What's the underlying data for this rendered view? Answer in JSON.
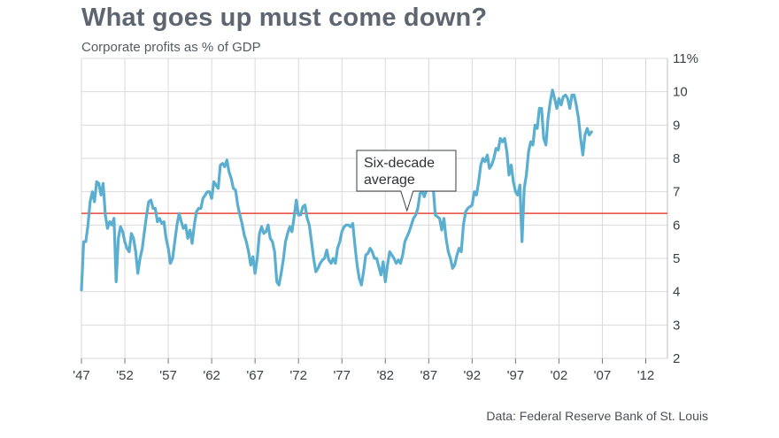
{
  "chart_data": {
    "type": "line",
    "title": "What goes up must come down?",
    "subtitle": "Corporate profits as % of GDP",
    "source": "Data: Federal Reserve Bank of St. Louis",
    "xlabel": "",
    "ylabel": "",
    "xlim": [
      1947,
      2014.5
    ],
    "ylim": [
      2,
      11
    ],
    "x_ticks": [
      {
        "value": 1947,
        "label": "'47"
      },
      {
        "value": 1952,
        "label": "'52"
      },
      {
        "value": 1957,
        "label": "'57"
      },
      {
        "value": 1962,
        "label": "'62"
      },
      {
        "value": 1967,
        "label": "'67"
      },
      {
        "value": 1972,
        "label": "'72"
      },
      {
        "value": 1977,
        "label": "'77"
      },
      {
        "value": 1982,
        "label": "'82"
      },
      {
        "value": 1987,
        "label": "'87"
      },
      {
        "value": 1992,
        "label": "'92"
      },
      {
        "value": 1997,
        "label": "'97"
      },
      {
        "value": 2002,
        "label": "'02"
      },
      {
        "value": 2007,
        "label": "'07"
      },
      {
        "value": 2012,
        "label": "'12"
      }
    ],
    "y_ticks": [
      {
        "value": 11,
        "label": "11%"
      },
      {
        "value": 10,
        "label": "10"
      },
      {
        "value": 9,
        "label": "9"
      },
      {
        "value": 8,
        "label": "8"
      },
      {
        "value": 7,
        "label": "7"
      },
      {
        "value": 6,
        "label": "6"
      },
      {
        "value": 5,
        "label": "5"
      },
      {
        "value": 4,
        "label": "4"
      },
      {
        "value": 3,
        "label": "3"
      },
      {
        "value": 2,
        "label": "2"
      }
    ],
    "grid": true,
    "reference_line": {
      "name": "Six-decade average",
      "value": 6.35
    },
    "annotation": {
      "line1": "Six-decade",
      "line2": "average",
      "x": 1984.5
    },
    "series": [
      {
        "name": "Corporate profits as % of GDP",
        "color": "#5aaed0",
        "points": [
          [
            1947.0,
            4.05
          ],
          [
            1947.25,
            5.5
          ],
          [
            1947.5,
            5.5
          ],
          [
            1947.75,
            6.0
          ],
          [
            1948.0,
            6.7
          ],
          [
            1948.25,
            7.0
          ],
          [
            1948.5,
            6.7
          ],
          [
            1948.75,
            7.3
          ],
          [
            1949.0,
            7.25
          ],
          [
            1949.25,
            6.9
          ],
          [
            1949.5,
            7.25
          ],
          [
            1949.75,
            6.3
          ],
          [
            1950.0,
            5.9
          ],
          [
            1950.25,
            6.1
          ],
          [
            1950.5,
            6.0
          ],
          [
            1950.75,
            6.2
          ],
          [
            1951.0,
            4.3
          ],
          [
            1951.25,
            5.6
          ],
          [
            1951.5,
            5.95
          ],
          [
            1951.75,
            5.8
          ],
          [
            1952.0,
            5.5
          ],
          [
            1952.25,
            5.3
          ],
          [
            1952.5,
            5.2
          ],
          [
            1952.75,
            5.75
          ],
          [
            1953.0,
            5.6
          ],
          [
            1953.25,
            5.2
          ],
          [
            1953.5,
            4.55
          ],
          [
            1953.75,
            5.0
          ],
          [
            1954.0,
            5.3
          ],
          [
            1954.25,
            5.8
          ],
          [
            1954.5,
            6.3
          ],
          [
            1954.75,
            6.7
          ],
          [
            1955.0,
            6.75
          ],
          [
            1955.25,
            6.5
          ],
          [
            1955.5,
            6.5
          ],
          [
            1955.75,
            6.1
          ],
          [
            1956.0,
            6.2
          ],
          [
            1956.25,
            6.05
          ],
          [
            1956.5,
            6.1
          ],
          [
            1956.75,
            5.6
          ],
          [
            1957.0,
            5.3
          ],
          [
            1957.25,
            4.85
          ],
          [
            1957.5,
            5.0
          ],
          [
            1957.75,
            5.5
          ],
          [
            1958.0,
            6.0
          ],
          [
            1958.25,
            6.35
          ],
          [
            1958.5,
            6.1
          ],
          [
            1958.75,
            5.9
          ],
          [
            1959.0,
            6.0
          ],
          [
            1959.25,
            5.6
          ],
          [
            1959.5,
            5.85
          ],
          [
            1959.75,
            5.45
          ],
          [
            1960.0,
            6.0
          ],
          [
            1960.25,
            6.4
          ],
          [
            1960.5,
            6.5
          ],
          [
            1960.75,
            6.5
          ],
          [
            1961.0,
            6.8
          ],
          [
            1961.25,
            6.9
          ],
          [
            1961.5,
            7.0
          ],
          [
            1961.75,
            7.0
          ],
          [
            1962.0,
            6.8
          ],
          [
            1962.25,
            7.3
          ],
          [
            1962.5,
            7.2
          ],
          [
            1962.75,
            7.1
          ],
          [
            1963.0,
            7.8
          ],
          [
            1963.25,
            7.85
          ],
          [
            1963.5,
            7.75
          ],
          [
            1963.75,
            7.95
          ],
          [
            1964.0,
            7.6
          ],
          [
            1964.25,
            7.4
          ],
          [
            1964.5,
            7.1
          ],
          [
            1964.75,
            7.05
          ],
          [
            1965.0,
            6.6
          ],
          [
            1965.25,
            6.3
          ],
          [
            1965.5,
            6.05
          ],
          [
            1965.75,
            5.7
          ],
          [
            1966.0,
            5.5
          ],
          [
            1966.25,
            5.2
          ],
          [
            1966.5,
            4.8
          ],
          [
            1966.75,
            5.05
          ],
          [
            1967.0,
            4.55
          ],
          [
            1967.25,
            5.0
          ],
          [
            1967.5,
            5.75
          ],
          [
            1967.75,
            5.95
          ],
          [
            1968.0,
            5.75
          ],
          [
            1968.25,
            5.8
          ],
          [
            1968.5,
            6.0
          ],
          [
            1968.75,
            5.6
          ],
          [
            1969.0,
            5.5
          ],
          [
            1969.25,
            5.2
          ],
          [
            1969.5,
            4.3
          ],
          [
            1969.75,
            4.2
          ],
          [
            1970.0,
            4.55
          ],
          [
            1970.25,
            4.95
          ],
          [
            1970.5,
            5.5
          ],
          [
            1970.75,
            5.75
          ],
          [
            1971.0,
            5.95
          ],
          [
            1971.25,
            5.8
          ],
          [
            1971.5,
            6.25
          ],
          [
            1971.75,
            6.75
          ],
          [
            1972.0,
            6.3
          ],
          [
            1972.25,
            6.3
          ],
          [
            1972.5,
            6.55
          ],
          [
            1972.75,
            6.6
          ],
          [
            1973.0,
            6.2
          ],
          [
            1973.25,
            6.0
          ],
          [
            1973.5,
            5.5
          ],
          [
            1973.75,
            5.0
          ],
          [
            1974.0,
            4.6
          ],
          [
            1974.25,
            4.7
          ],
          [
            1974.5,
            4.85
          ],
          [
            1974.75,
            4.95
          ],
          [
            1975.0,
            5.0
          ],
          [
            1975.25,
            5.25
          ],
          [
            1975.5,
            4.95
          ],
          [
            1975.75,
            4.85
          ],
          [
            1976.0,
            5.0
          ],
          [
            1976.25,
            4.85
          ],
          [
            1976.5,
            5.3
          ],
          [
            1976.75,
            5.5
          ],
          [
            1977.0,
            5.8
          ],
          [
            1977.25,
            5.95
          ],
          [
            1977.5,
            6.0
          ],
          [
            1977.75,
            6.0
          ],
          [
            1978.0,
            5.95
          ],
          [
            1978.25,
            6.05
          ],
          [
            1978.5,
            5.4
          ],
          [
            1978.75,
            4.8
          ],
          [
            1979.0,
            4.4
          ],
          [
            1979.25,
            4.2
          ],
          [
            1979.5,
            4.6
          ],
          [
            1979.75,
            5.1
          ],
          [
            1980.0,
            5.15
          ],
          [
            1980.25,
            5.3
          ],
          [
            1980.5,
            5.2
          ],
          [
            1980.75,
            5.0
          ],
          [
            1981.0,
            5.0
          ],
          [
            1981.25,
            4.75
          ],
          [
            1981.5,
            4.5
          ],
          [
            1981.75,
            4.9
          ],
          [
            1982.0,
            4.3
          ],
          [
            1982.25,
            4.8
          ],
          [
            1982.5,
            5.2
          ],
          [
            1982.75,
            5.1
          ],
          [
            1983.0,
            5.0
          ],
          [
            1983.25,
            4.85
          ],
          [
            1983.5,
            4.95
          ],
          [
            1983.75,
            4.85
          ],
          [
            1984.0,
            5.1
          ],
          [
            1984.25,
            5.5
          ],
          [
            1984.5,
            5.65
          ],
          [
            1984.75,
            5.8
          ],
          [
            1985.0,
            6.0
          ],
          [
            1985.25,
            6.2
          ],
          [
            1985.5,
            6.3
          ],
          [
            1985.75,
            6.5
          ],
          [
            1986.0,
            6.95
          ],
          [
            1986.25,
            7.0
          ],
          [
            1986.5,
            6.85
          ],
          [
            1986.75,
            7.05
          ],
          [
            1987.0,
            7.15
          ],
          [
            1987.25,
            7.3
          ],
          [
            1987.5,
            7.2
          ],
          [
            1987.75,
            6.3
          ],
          [
            1988.0,
            6.25
          ],
          [
            1988.25,
            6.2
          ],
          [
            1988.5,
            5.85
          ],
          [
            1988.75,
            6.2
          ],
          [
            1989.0,
            5.6
          ],
          [
            1989.25,
            5.2
          ],
          [
            1989.5,
            5.0
          ],
          [
            1989.75,
            4.7
          ],
          [
            1990.0,
            4.8
          ],
          [
            1990.25,
            5.1
          ],
          [
            1990.5,
            5.3
          ],
          [
            1990.75,
            5.2
          ],
          [
            1991.0,
            6.0
          ],
          [
            1991.25,
            6.4
          ],
          [
            1991.5,
            6.5
          ],
          [
            1991.75,
            6.55
          ],
          [
            1992.0,
            6.6
          ],
          [
            1992.25,
            7.0
          ],
          [
            1992.5,
            6.9
          ],
          [
            1992.75,
            7.3
          ],
          [
            1993.0,
            7.8
          ],
          [
            1993.25,
            8.0
          ],
          [
            1993.5,
            7.9
          ],
          [
            1993.75,
            8.1
          ],
          [
            1994.0,
            7.7
          ],
          [
            1994.25,
            7.8
          ],
          [
            1994.5,
            8.0
          ],
          [
            1994.75,
            8.3
          ],
          [
            1995.0,
            8.25
          ],
          [
            1995.25,
            8.6
          ],
          [
            1995.5,
            8.5
          ],
          [
            1995.75,
            8.6
          ],
          [
            1996.0,
            8.2
          ],
          [
            1996.25,
            7.5
          ],
          [
            1996.5,
            7.8
          ],
          [
            1996.75,
            7.3
          ],
          [
            1997.0,
            7.0
          ],
          [
            1997.25,
            6.9
          ],
          [
            1997.5,
            7.2
          ],
          [
            1997.75,
            5.5
          ],
          [
            1998.0,
            7.1
          ],
          [
            1998.25,
            7.5
          ],
          [
            1998.5,
            8.2
          ],
          [
            1998.75,
            8.5
          ],
          [
            1999.0,
            8.4
          ],
          [
            1999.25,
            9.0
          ],
          [
            1999.5,
            8.9
          ],
          [
            1999.75,
            9.5
          ],
          [
            2000.0,
            9.5
          ],
          [
            2000.25,
            8.6
          ],
          [
            2000.5,
            8.4
          ],
          [
            2000.75,
            9.2
          ],
          [
            2001.0,
            9.7
          ],
          [
            2001.25,
            10.05
          ],
          [
            2001.5,
            9.8
          ],
          [
            2001.75,
            9.5
          ],
          [
            2002.0,
            9.8
          ],
          [
            2002.25,
            9.6
          ],
          [
            2002.5,
            9.85
          ],
          [
            2002.75,
            9.9
          ],
          [
            2003.0,
            9.8
          ],
          [
            2003.25,
            9.5
          ],
          [
            2003.5,
            9.9
          ],
          [
            2003.75,
            9.9
          ],
          [
            2004.0,
            9.6
          ],
          [
            2004.25,
            9.2
          ],
          [
            2004.5,
            8.6
          ],
          [
            2004.75,
            8.1
          ],
          [
            2005.0,
            8.7
          ],
          [
            2005.25,
            8.9
          ],
          [
            2005.5,
            8.7
          ],
          [
            2005.75,
            8.8
          ]
        ]
      }
    ]
  }
}
